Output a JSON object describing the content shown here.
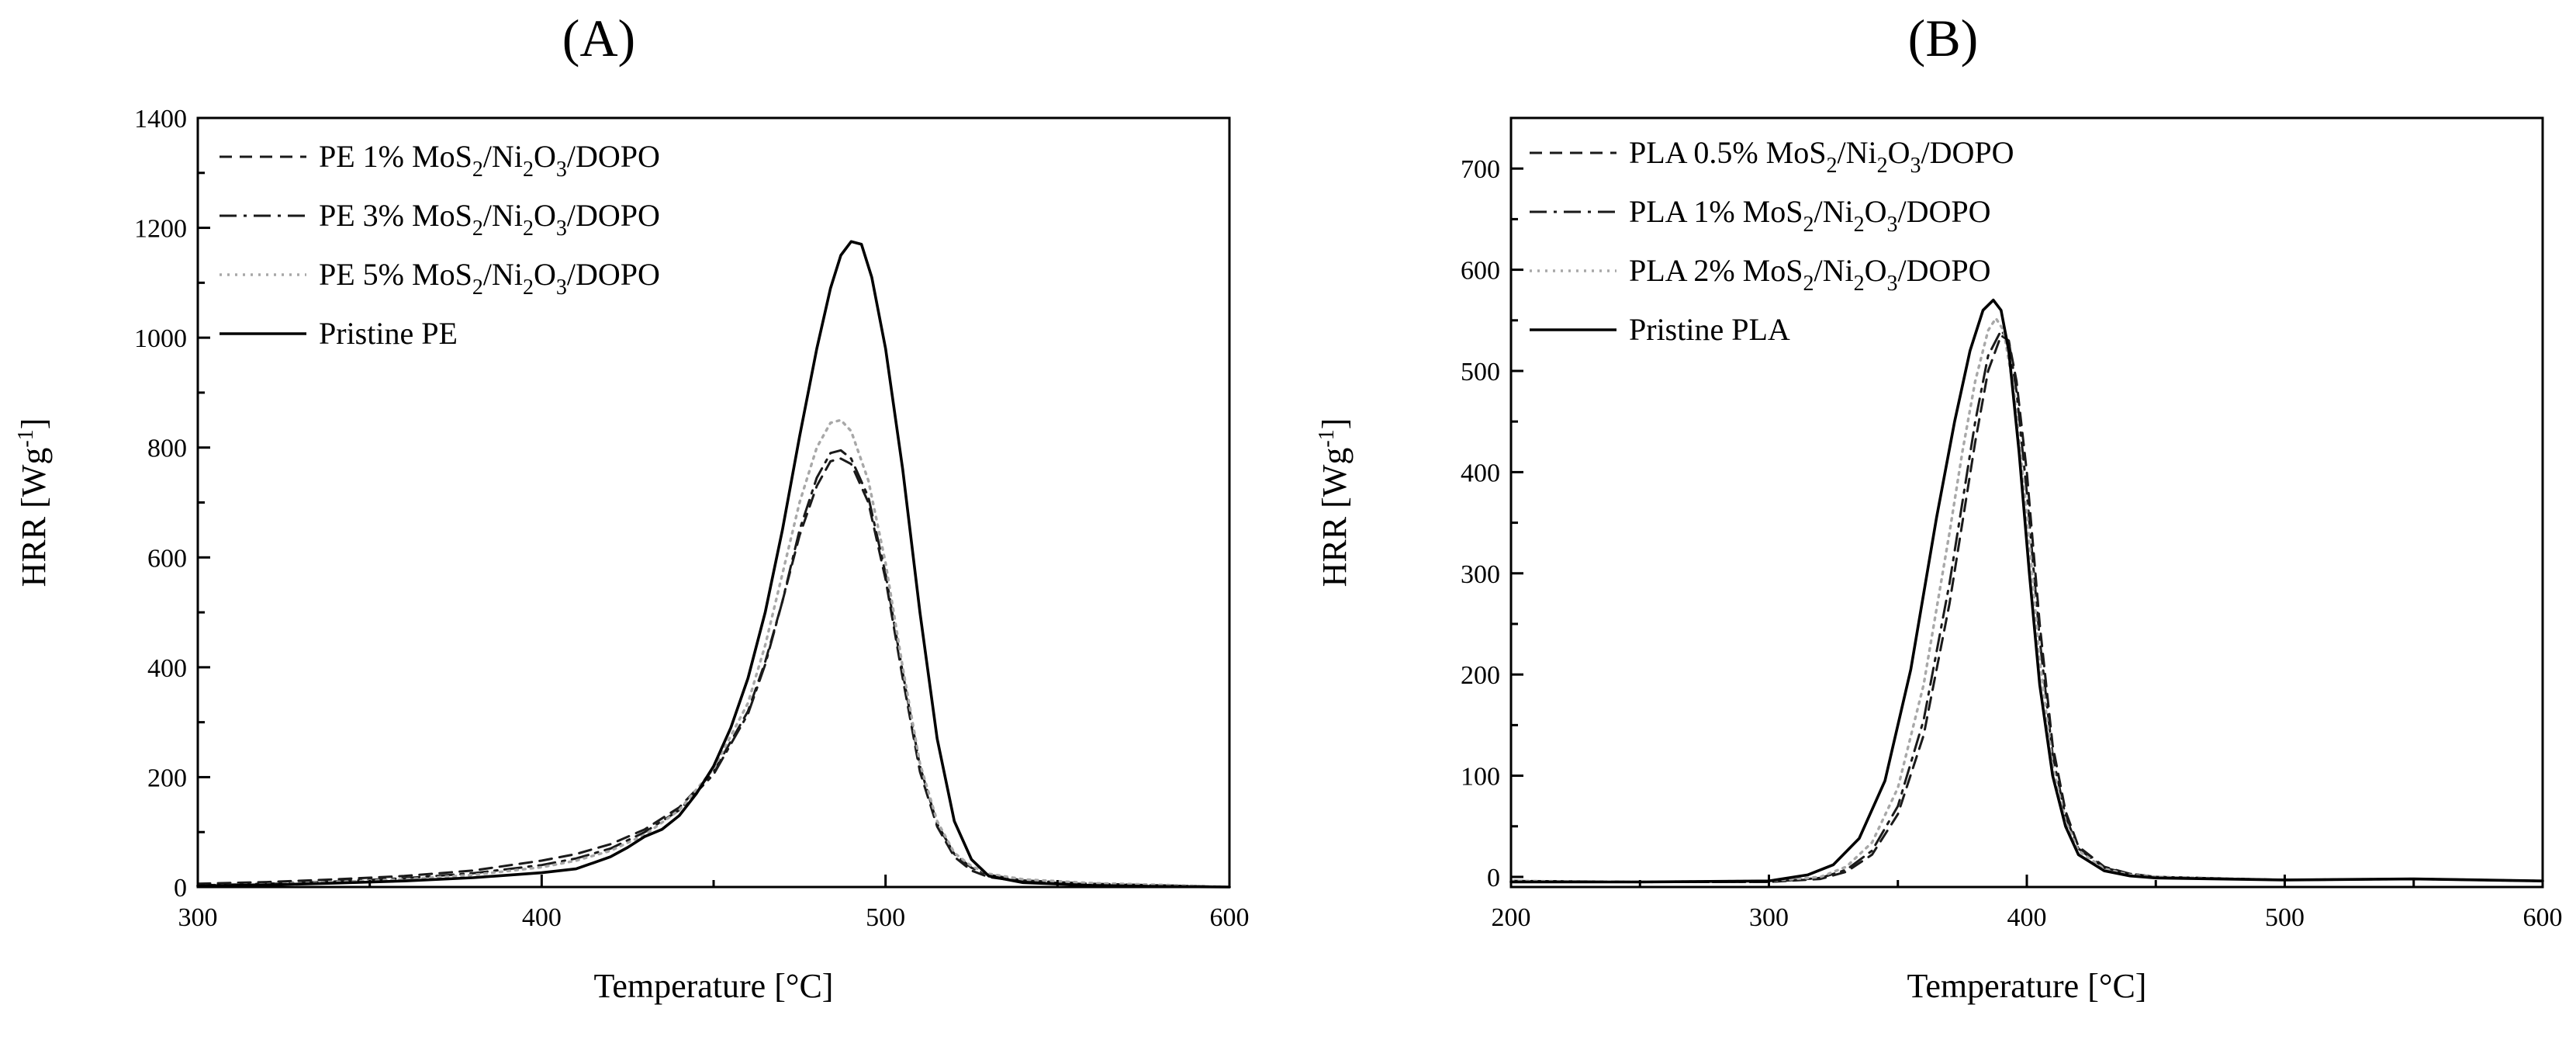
{
  "chart_data": [
    {
      "panel_label": "(A)",
      "type": "line",
      "xlabel": "Temperature [°C]",
      "ylabel_main": "HRR [Wg",
      "ylabel_sup": "-1",
      "ylabel_close": "]",
      "xlim": [
        300,
        600
      ],
      "ylim": [
        0,
        1400
      ],
      "xticks": [
        300,
        400,
        500,
        600
      ],
      "yticks": [
        0,
        200,
        400,
        600,
        800,
        1000,
        1200,
        1400
      ],
      "x_minor_step": 50,
      "y_minor_step": 100,
      "legend_position": "top-left",
      "grid": false,
      "series": [
        {
          "legend_parts": [
            "PE 1% MoS",
            "2",
            "/Ni",
            "2",
            "O",
            "3",
            "/DOPO"
          ],
          "color": "#1a1a1a",
          "style": "dash",
          "x": [
            300,
            320,
            340,
            360,
            380,
            400,
            410,
            420,
            430,
            440,
            450,
            460,
            465,
            470,
            475,
            480,
            484,
            487,
            490,
            495,
            500,
            505,
            510,
            515,
            520,
            525,
            530,
            540,
            560,
            580,
            600
          ],
          "y": [
            6,
            9,
            14,
            20,
            30,
            48,
            60,
            78,
            105,
            145,
            210,
            320,
            410,
            520,
            640,
            730,
            775,
            780,
            770,
            700,
            560,
            380,
            210,
            110,
            55,
            30,
            18,
            10,
            5,
            3,
            0
          ]
        },
        {
          "legend_parts": [
            "PE 3% MoS",
            "2",
            "/Ni",
            "2",
            "O",
            "3",
            "/DOPO"
          ],
          "color": "#1a1a1a",
          "style": "dashdot",
          "x": [
            300,
            320,
            340,
            360,
            380,
            400,
            410,
            420,
            430,
            440,
            450,
            460,
            465,
            470,
            475,
            480,
            484,
            487,
            490,
            495,
            500,
            505,
            510,
            515,
            520,
            525,
            530,
            540,
            560,
            580,
            600
          ],
          "y": [
            3,
            6,
            10,
            16,
            25,
            40,
            52,
            70,
            100,
            140,
            205,
            315,
            405,
            520,
            650,
            745,
            790,
            795,
            780,
            710,
            570,
            390,
            220,
            115,
            60,
            35,
            22,
            12,
            6,
            3,
            0
          ]
        },
        {
          "legend_parts": [
            "PE 5% MoS",
            "2",
            "/Ni",
            "2",
            "O",
            "3",
            "/DOPO"
          ],
          "color": "#a8a8a8",
          "style": "dot",
          "x": [
            300,
            320,
            340,
            360,
            380,
            400,
            410,
            420,
            430,
            440,
            450,
            460,
            465,
            470,
            475,
            480,
            484,
            487,
            490,
            495,
            500,
            505,
            510,
            515,
            520,
            525,
            530,
            540,
            560,
            580,
            600
          ],
          "y": [
            2,
            5,
            9,
            14,
            22,
            36,
            48,
            66,
            95,
            140,
            215,
            335,
            440,
            570,
            700,
            800,
            845,
            850,
            830,
            740,
            590,
            400,
            225,
            120,
            62,
            38,
            24,
            14,
            7,
            4,
            0
          ]
        },
        {
          "legend_parts": [
            "Pristine PE"
          ],
          "color": "#000000",
          "style": "solid",
          "x": [
            300,
            320,
            340,
            360,
            380,
            400,
            410,
            415,
            420,
            425,
            430,
            435,
            440,
            445,
            450,
            455,
            460,
            465,
            470,
            475,
            480,
            484,
            487,
            490,
            493,
            496,
            500,
            505,
            510,
            515,
            520,
            525,
            530,
            540,
            560,
            580,
            600
          ],
          "y": [
            2,
            4,
            7,
            11,
            17,
            26,
            33,
            44,
            55,
            72,
            92,
            105,
            130,
            170,
            220,
            290,
            380,
            500,
            650,
            820,
            980,
            1090,
            1150,
            1175,
            1170,
            1110,
            980,
            760,
            500,
            270,
            120,
            50,
            20,
            8,
            3,
            1,
            0
          ]
        }
      ]
    },
    {
      "panel_label": "(B)",
      "type": "line",
      "xlabel": "Temperature [°C]",
      "ylabel_main": "HRR [Wg",
      "ylabel_sup": "-1",
      "ylabel_close": "]",
      "xlim": [
        200,
        600
      ],
      "ylim": [
        -10,
        750
      ],
      "xticks": [
        200,
        300,
        400,
        500,
        600
      ],
      "yticks": [
        0,
        100,
        200,
        300,
        400,
        500,
        600,
        700
      ],
      "x_minor_step": 50,
      "y_minor_step": 50,
      "legend_position": "top-left",
      "grid": false,
      "series": [
        {
          "legend_parts": [
            "PLA 0.5% MoS",
            "2",
            "/Ni",
            "2",
            "O",
            "3",
            "/DOPO"
          ],
          "color": "#1a1a1a",
          "style": "dash",
          "x": [
            200,
            250,
            300,
            320,
            330,
            340,
            350,
            360,
            370,
            375,
            380,
            385,
            390,
            393,
            396,
            400,
            405,
            410,
            415,
            420,
            430,
            440,
            450,
            500,
            550,
            600
          ],
          "y": [
            -4,
            -5,
            -5,
            -2,
            5,
            22,
            62,
            140,
            270,
            350,
            430,
            500,
            535,
            530,
            490,
            400,
            250,
            130,
            65,
            30,
            10,
            3,
            0,
            -3,
            -2,
            -4
          ]
        },
        {
          "legend_parts": [
            "PLA 1% MoS",
            "2",
            "/Ni",
            "2",
            "O",
            "3",
            "/DOPO"
          ],
          "color": "#1a1a1a",
          "style": "dashdot",
          "x": [
            200,
            250,
            300,
            320,
            330,
            340,
            350,
            360,
            370,
            375,
            380,
            385,
            390,
            393,
            396,
            400,
            405,
            410,
            415,
            420,
            430,
            440,
            450,
            500,
            550,
            600
          ],
          "y": [
            -4,
            -5,
            -5,
            -1,
            7,
            26,
            70,
            155,
            290,
            370,
            450,
            515,
            540,
            530,
            480,
            380,
            235,
            120,
            60,
            28,
            9,
            3,
            0,
            -3,
            -2,
            -4
          ]
        },
        {
          "legend_parts": [
            "PLA 2% MoS",
            "2",
            "/Ni",
            "2",
            "O",
            "3",
            "/DOPO"
          ],
          "color": "#a8a8a8",
          "style": "dot",
          "x": [
            200,
            250,
            300,
            320,
            330,
            340,
            350,
            360,
            370,
            375,
            380,
            385,
            388,
            391,
            395,
            400,
            405,
            410,
            415,
            420,
            430,
            440,
            450,
            500,
            550,
            600
          ],
          "y": [
            -4,
            -5,
            -4,
            0,
            10,
            34,
            88,
            190,
            340,
            420,
            490,
            540,
            552,
            540,
            480,
            360,
            215,
            110,
            55,
            26,
            8,
            2,
            0,
            -3,
            -2,
            -4
          ]
        },
        {
          "legend_parts": [
            "Pristine PLA"
          ],
          "color": "#000000",
          "style": "solid",
          "x": [
            200,
            250,
            300,
            315,
            325,
            335,
            345,
            355,
            365,
            372,
            378,
            383,
            387,
            390,
            393,
            397,
            401,
            405,
            410,
            415,
            420,
            430,
            440,
            450,
            500,
            550,
            600
          ],
          "y": [
            -5,
            -5,
            -4,
            2,
            12,
            38,
            95,
            205,
            355,
            450,
            520,
            560,
            570,
            560,
            520,
            420,
            300,
            190,
            100,
            50,
            22,
            6,
            1,
            -1,
            -3,
            -2,
            -4
          ]
        }
      ]
    }
  ]
}
